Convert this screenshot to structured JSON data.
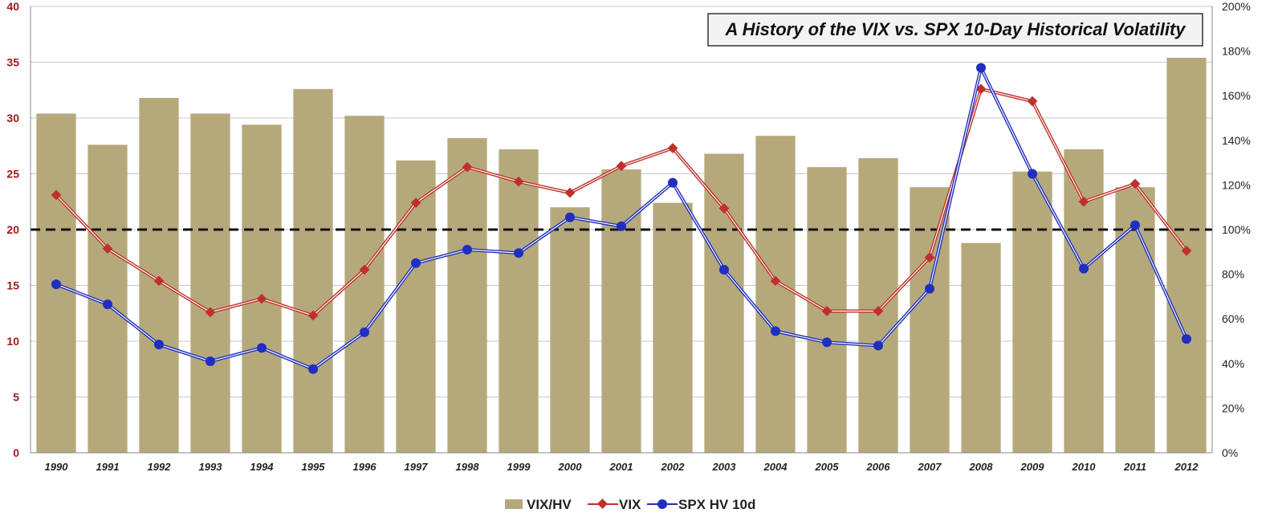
{
  "chart_data": {
    "type": "bar",
    "title": "A History of the VIX vs. SPX 10-Day Historical Volatility",
    "categories": [
      "1990",
      "1991",
      "1992",
      "1993",
      "1994",
      "1995",
      "1996",
      "1997",
      "1998",
      "1999",
      "2000",
      "2001",
      "2002",
      "2003",
      "2004",
      "2005",
      "2006",
      "2007",
      "2008",
      "2009",
      "2010",
      "2011",
      "2012"
    ],
    "y_left": {
      "ylim": [
        0,
        40
      ],
      "ticks": [
        "0",
        "5",
        "10",
        "15",
        "20",
        "25",
        "30",
        "35",
        "40"
      ],
      "color": "#a01818"
    },
    "y_right": {
      "ylim": [
        0,
        200
      ],
      "ticks": [
        "0%",
        "20%",
        "40%",
        "60%",
        "80%",
        "100%",
        "120%",
        "140%",
        "160%",
        "180%",
        "200%"
      ]
    },
    "reference_line": {
      "value": 100,
      "axis": "right",
      "style": "dashed"
    },
    "series": [
      {
        "name": "VIX/HV",
        "type": "bar",
        "axis": "right",
        "color": "#b5a97c",
        "values": [
          152,
          138,
          159,
          152,
          147,
          163,
          151,
          131,
          141,
          136,
          110,
          127,
          112,
          134,
          142,
          128,
          132,
          119,
          94,
          126,
          136,
          119,
          177
        ]
      },
      {
        "name": "VIX",
        "type": "line",
        "axis": "left",
        "color": "#c0302a",
        "values": [
          23.1,
          18.3,
          15.4,
          12.6,
          13.8,
          12.3,
          16.4,
          22.4,
          25.6,
          24.3,
          23.3,
          25.7,
          27.3,
          21.9,
          15.4,
          12.7,
          12.7,
          17.5,
          32.6,
          31.5,
          22.5,
          24.1,
          18.1
        ]
      },
      {
        "name": "SPX HV 10d",
        "type": "line",
        "axis": "left",
        "color": "#1f2fbf",
        "values": [
          15.1,
          13.3,
          9.7,
          8.2,
          9.4,
          7.5,
          10.8,
          17.0,
          18.2,
          17.9,
          21.1,
          20.3,
          24.2,
          16.4,
          10.9,
          9.9,
          9.6,
          14.7,
          34.5,
          25.0,
          16.5,
          20.4,
          10.2
        ]
      }
    ],
    "legend": {
      "placement": "bottom",
      "entries": [
        "VIX/HV",
        "VIX",
        "SPX HV 10d"
      ]
    },
    "grid": {
      "horizontal": true,
      "vertical": false
    }
  }
}
